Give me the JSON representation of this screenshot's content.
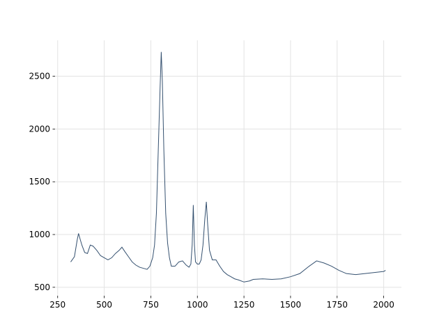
{
  "chart_data": {
    "type": "line",
    "color": "#34506f",
    "grid": true,
    "x": [
      320,
      340,
      355,
      362,
      370,
      380,
      395,
      410,
      425,
      440,
      460,
      480,
      500,
      520,
      540,
      560,
      580,
      595,
      610,
      630,
      650,
      670,
      690,
      710,
      730,
      745,
      760,
      770,
      780,
      790,
      800,
      806,
      812,
      820,
      830,
      840,
      850,
      860,
      880,
      900,
      920,
      940,
      955,
      965,
      972,
      978,
      984,
      990,
      1000,
      1010,
      1020,
      1030,
      1040,
      1048,
      1055,
      1065,
      1080,
      1100,
      1120,
      1140,
      1160,
      1180,
      1200,
      1220,
      1250,
      1280,
      1300,
      1350,
      1400,
      1450,
      1500,
      1550,
      1600,
      1640,
      1680,
      1720,
      1760,
      1800,
      1850,
      1900,
      1950,
      2000,
      2010
    ],
    "values": [
      740,
      790,
      950,
      1010,
      960,
      900,
      830,
      820,
      900,
      890,
      850,
      800,
      780,
      760,
      780,
      820,
      850,
      880,
      840,
      790,
      740,
      710,
      690,
      680,
      670,
      700,
      780,
      900,
      1200,
      1800,
      2400,
      2730,
      2450,
      1800,
      1200,
      920,
      780,
      700,
      700,
      740,
      750,
      710,
      690,
      720,
      900,
      1280,
      900,
      740,
      720,
      720,
      760,
      900,
      1150,
      1310,
      1100,
      850,
      760,
      760,
      700,
      650,
      620,
      600,
      580,
      570,
      550,
      560,
      575,
      580,
      575,
      580,
      600,
      630,
      700,
      750,
      730,
      700,
      660,
      630,
      620,
      630,
      640,
      650,
      660
    ],
    "xlim": [
      236,
      2095
    ],
    "ylim": [
      420,
      2840
    ],
    "xticks": [
      250,
      500,
      750,
      1000,
      1250,
      1500,
      1750,
      2000
    ],
    "yticks": [
      500,
      1000,
      1500,
      2000,
      2500
    ]
  }
}
